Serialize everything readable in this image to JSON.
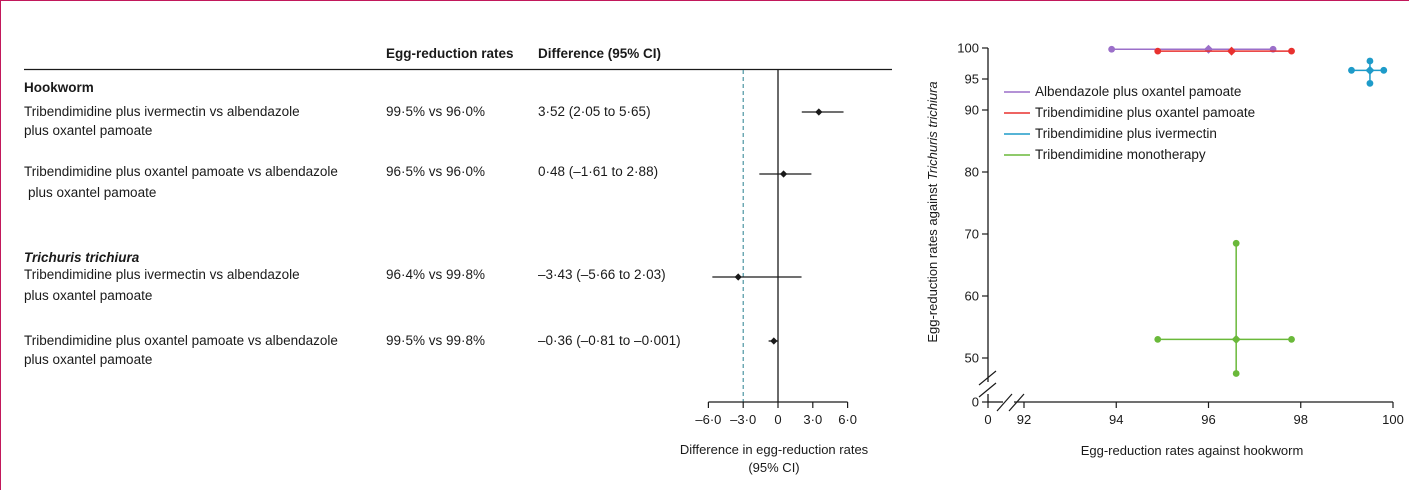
{
  "forest": {
    "headers": {
      "rates": "Egg-reduction rates",
      "diff": "Difference (95% CI)"
    },
    "groups": [
      {
        "title": "Hookworm",
        "italic": false,
        "rows": [
          {
            "label_lines": [
              "Tribendimidine plus ivermectin vs albendazole",
              "plus oxantel pamoate"
            ],
            "rates": "99·5% vs 96·0%",
            "diff": "3·52 (2·05 to 5·65)",
            "estimate": 3.52,
            "lo": 2.05,
            "hi": 5.65
          },
          {
            "label_lines": [
              "Tribendimidine plus oxantel pamoate vs albendazole",
              "plus oxantel pamoate"
            ],
            "rates": "96·5% vs 96·0%",
            "diff": "0·48 (–1·61 to 2·88)",
            "estimate": 0.48,
            "lo": -1.61,
            "hi": 2.88
          }
        ]
      },
      {
        "title": "Trichuris trichiura",
        "italic": true,
        "rows": [
          {
            "label_lines": [
              "Tribendimidine plus ivermectin vs albendazole",
              "plus oxantel pamoate"
            ],
            "rates": "96·4% vs 99·8%",
            "diff": "–3·43 (–5·66 to 2·03)",
            "estimate": -3.43,
            "lo": -5.66,
            "hi": 2.03
          },
          {
            "label_lines": [
              "Tribendimidine plus oxantel pamoate vs albendazole",
              "plus oxantel pamoate"
            ],
            "rates": "99·5% vs 99·8%",
            "diff": "–0·36 (–0·81 to –0·001)",
            "estimate": -0.36,
            "lo": -0.81,
            "hi": -0.001
          }
        ]
      }
    ],
    "axis": {
      "ticks": [
        -6,
        -3,
        0,
        3,
        6
      ],
      "tick_labels": [
        "–6·0",
        "–3·0",
        "0",
        "3·0",
        "6·0"
      ],
      "xlim": [
        -6,
        6
      ],
      "reference_dashed": -3,
      "xlabel_lines": [
        "Difference in egg-reduction rates",
        "(95% CI)"
      ]
    }
  },
  "chart_data": [
    {
      "type": "forest",
      "categories": [
        "Hookworm: Tribendimidine plus ivermectin vs albendazole plus oxantel pamoate",
        "Hookworm: Tribendimidine plus oxantel pamoate vs albendazole plus oxantel pamoate",
        "Trichuris trichiura: Tribendimidine plus ivermectin vs albendazole plus oxantel pamoate",
        "Trichuris trichiura: Tribendimidine plus oxantel pamoate vs albendazole plus oxantel pamoate"
      ],
      "values": [
        3.52,
        0.48,
        -3.43,
        -0.36
      ],
      "lower": [
        2.05,
        -1.61,
        -5.66,
        -0.81
      ],
      "upper": [
        5.65,
        2.88,
        2.03,
        -0.001
      ],
      "xlim": [
        -6,
        6
      ],
      "xlabel": "Difference in egg-reduction rates (95% CI)",
      "ylabel": "",
      "title": ""
    },
    {
      "type": "scatter",
      "title": "",
      "xlabel": "Egg-reduction rates against hookworm",
      "ylabel_prefix": "Egg-reduction rates against ",
      "ylabel_italic": "Trichuris trichiura",
      "ylabel": "Egg-reduction rates against Trichuris trichiura",
      "xlim": [
        92,
        100
      ],
      "ylim": [
        45,
        100
      ],
      "x_ticks": [
        0,
        92,
        94,
        96,
        98,
        100
      ],
      "y_ticks": [
        0,
        50,
        60,
        70,
        80,
        90,
        95,
        100
      ],
      "axis_breaks": true,
      "legend_position": "top-left",
      "series": [
        {
          "name": "Albendazole plus oxantel pamoate",
          "color": "#9b6fc9",
          "x": 96.0,
          "y": 99.8,
          "x_lo": 93.9,
          "x_hi": 97.4,
          "y_lo": 99.5,
          "y_hi": 100
        },
        {
          "name": "Tribendimidine plus oxantel pamoate",
          "color": "#e8312f",
          "x": 96.5,
          "y": 99.5,
          "x_lo": 94.9,
          "x_hi": 97.8,
          "y_lo": 99.3,
          "y_hi": 99.7
        },
        {
          "name": "Tribendimidine plus ivermectin",
          "color": "#1e9bc9",
          "x": 99.5,
          "y": 96.4,
          "x_lo": 99.1,
          "x_hi": 99.8,
          "y_lo": 94.3,
          "y_hi": 97.9
        },
        {
          "name": "Tribendimidine monotherapy",
          "color": "#6ab93a",
          "x": 96.6,
          "y": 53.0,
          "x_lo": 94.9,
          "x_hi": 97.8,
          "y_lo": 47.5,
          "y_hi": 68.5
        }
      ]
    }
  ]
}
